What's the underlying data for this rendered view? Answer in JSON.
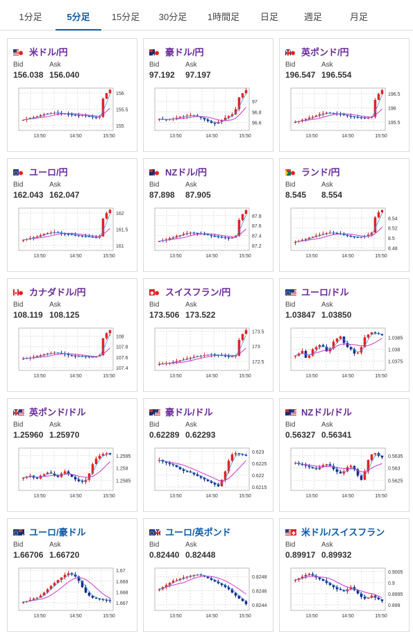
{
  "tabs": [
    {
      "label": "1分足",
      "active": false
    },
    {
      "label": "5分足",
      "active": true
    },
    {
      "label": "15分足",
      "active": false
    },
    {
      "label": "30分足",
      "active": false
    },
    {
      "label": "1時間足",
      "active": false
    },
    {
      "label": "日足",
      "active": false
    },
    {
      "label": "週足",
      "active": false
    },
    {
      "label": "月足",
      "active": false
    }
  ],
  "colors": {
    "up": "#e32222",
    "down": "#1a2a8a",
    "ma_short": "#3399dd",
    "ma_long": "#cc33cc"
  },
  "cards": [
    {
      "title": "米ドル/円",
      "title_color": "purple",
      "flags": [
        "us",
        "jp"
      ],
      "bid_label": "Bid",
      "ask_label": "Ask",
      "bid": "156.038",
      "ask": "156.040",
      "chart_data": {
        "type": "candlestick",
        "xticks": [
          "13:50",
          "14:50",
          "15:50"
        ],
        "yticks": [
          "156",
          "155.5",
          "155"
        ],
        "ylim": [
          154.85,
          156.15
        ],
        "shape": [
          0.25,
          0.27,
          0.3,
          0.31,
          0.33,
          0.36,
          0.38,
          0.4,
          0.41,
          0.42,
          0.41,
          0.4,
          0.39,
          0.38,
          0.37,
          0.36,
          0.35,
          0.36,
          0.34,
          0.33,
          0.31,
          0.3,
          0.32,
          0.75,
          0.88,
          0.96
        ]
      }
    },
    {
      "title": "豪ドル/円",
      "title_color": "purple",
      "flags": [
        "au",
        "jp"
      ],
      "bid_label": "Bid",
      "ask_label": "Ask",
      "bid": "97.192",
      "ask": "97.197",
      "chart_data": {
        "type": "candlestick",
        "xticks": [
          "13:50",
          "14:50",
          "15:50"
        ],
        "yticks": [
          "97",
          "96.8",
          "96.6"
        ],
        "ylim": [
          96.45,
          97.25
        ],
        "shape": [
          0.27,
          0.26,
          0.25,
          0.27,
          0.28,
          0.3,
          0.32,
          0.33,
          0.35,
          0.36,
          0.35,
          0.33,
          0.3,
          0.26,
          0.22,
          0.18,
          0.16,
          0.2,
          0.24,
          0.3,
          0.34,
          0.38,
          0.5,
          0.78,
          0.88,
          0.95
        ]
      }
    },
    {
      "title": "英ポンド/円",
      "title_color": "purple",
      "flags": [
        "gb",
        "jp"
      ],
      "bid_label": "Bid",
      "ask_label": "Ask",
      "bid": "196.547",
      "ask": "196.554",
      "chart_data": {
        "type": "candlestick",
        "xticks": [
          "13:50",
          "14:50",
          "15:50"
        ],
        "yticks": [
          "196.5",
          "196",
          "195.5"
        ],
        "ylim": [
          195.2,
          196.7
        ],
        "shape": [
          0.2,
          0.22,
          0.25,
          0.27,
          0.3,
          0.32,
          0.35,
          0.38,
          0.4,
          0.42,
          0.41,
          0.4,
          0.39,
          0.38,
          0.36,
          0.34,
          0.33,
          0.32,
          0.31,
          0.3,
          0.29,
          0.3,
          0.32,
          0.72,
          0.86,
          0.95
        ]
      }
    },
    {
      "title": "ユーロ/円",
      "title_color": "purple",
      "flags": [
        "eu",
        "jp"
      ],
      "bid_label": "Bid",
      "ask_label": "Ask",
      "bid": "162.043",
      "ask": "162.047",
      "chart_data": {
        "type": "candlestick",
        "xticks": [
          "13:50",
          "14:50",
          "15:50"
        ],
        "yticks": [
          "162",
          "161.5",
          "161"
        ],
        "ylim": [
          160.85,
          162.15
        ],
        "shape": [
          0.25,
          0.27,
          0.29,
          0.31,
          0.33,
          0.36,
          0.39,
          0.41,
          0.42,
          0.43,
          0.42,
          0.4,
          0.39,
          0.38,
          0.37,
          0.36,
          0.35,
          0.34,
          0.33,
          0.32,
          0.31,
          0.3,
          0.33,
          0.75,
          0.88,
          0.96
        ]
      }
    },
    {
      "title": "NZドル/円",
      "title_color": "purple",
      "flags": [
        "nz",
        "jp"
      ],
      "bid_label": "Bid",
      "ask_label": "Ask",
      "bid": "87.898",
      "ask": "87.905",
      "chart_data": {
        "type": "candlestick",
        "xticks": [
          "13:50",
          "14:50",
          "15:50"
        ],
        "yticks": [
          "87.8",
          "87.6",
          "87.4",
          "87.2"
        ],
        "ylim": [
          87.1,
          87.95
        ],
        "shape": [
          0.22,
          0.24,
          0.26,
          0.29,
          0.31,
          0.34,
          0.36,
          0.39,
          0.41,
          0.42,
          0.41,
          0.4,
          0.39,
          0.38,
          0.36,
          0.34,
          0.33,
          0.32,
          0.31,
          0.3,
          0.29,
          0.3,
          0.34,
          0.72,
          0.86,
          0.95
        ]
      }
    },
    {
      "title": "ランド/円",
      "title_color": "purple",
      "flags": [
        "za",
        "jp"
      ],
      "bid_label": "Bid",
      "ask_label": "Ask",
      "bid": "8.545",
      "ask": "8.554",
      "chart_data": {
        "type": "candlestick",
        "xticks": [
          "13:50",
          "14:50",
          "15:50"
        ],
        "yticks": [
          "8.54",
          "8.52",
          "8.5",
          "8.48"
        ],
        "ylim": [
          8.475,
          8.56
        ],
        "shape": [
          0.2,
          0.22,
          0.25,
          0.27,
          0.3,
          0.32,
          0.35,
          0.37,
          0.39,
          0.41,
          0.42,
          0.41,
          0.4,
          0.38,
          0.36,
          0.34,
          0.33,
          0.32,
          0.31,
          0.32,
          0.34,
          0.37,
          0.42,
          0.78,
          0.9,
          0.95
        ]
      }
    },
    {
      "title": "カナダドル/円",
      "title_color": "purple",
      "flags": [
        "ca",
        "jp"
      ],
      "bid_label": "Bid",
      "ask_label": "Ask",
      "bid": "108.119",
      "ask": "108.125",
      "chart_data": {
        "type": "candlestick",
        "xticks": [
          "13:50",
          "14:50",
          "15:50"
        ],
        "yticks": [
          "108",
          "107.8",
          "107.6",
          "107.4"
        ],
        "ylim": [
          107.35,
          108.15
        ],
        "shape": [
          0.28,
          0.29,
          0.3,
          0.32,
          0.34,
          0.36,
          0.38,
          0.4,
          0.41,
          0.42,
          0.41,
          0.4,
          0.38,
          0.36,
          0.35,
          0.34,
          0.34,
          0.33,
          0.33,
          0.32,
          0.32,
          0.33,
          0.36,
          0.76,
          0.88,
          0.95
        ]
      }
    },
    {
      "title": "スイスフラン/円",
      "title_color": "purple",
      "flags": [
        "ch",
        "jp"
      ],
      "bid_label": "Bid",
      "ask_label": "Ask",
      "bid": "173.506",
      "ask": "173.522",
      "chart_data": {
        "type": "candlestick",
        "xticks": [
          "13:50",
          "14:50",
          "15:50"
        ],
        "yticks": [
          "173.5",
          "173",
          "172.5"
        ],
        "ylim": [
          172.2,
          173.6
        ],
        "shape": [
          0.15,
          0.16,
          0.17,
          0.18,
          0.2,
          0.22,
          0.24,
          0.26,
          0.28,
          0.3,
          0.32,
          0.34,
          0.35,
          0.36,
          0.37,
          0.38,
          0.37,
          0.36,
          0.35,
          0.34,
          0.33,
          0.33,
          0.35,
          0.72,
          0.86,
          0.95
        ]
      }
    },
    {
      "title": "ユーロ/ドル",
      "title_color": "purple",
      "flags": [
        "eu",
        "us"
      ],
      "bid_label": "Bid",
      "ask_label": "Ask",
      "bid": "1.03847",
      "ask": "1.03850",
      "chart_data": {
        "type": "candlestick",
        "xticks": [
          "13:50",
          "14:50",
          "15:50"
        ],
        "yticks": [
          "1.0385",
          "1.038",
          "1.0375"
        ],
        "ylim": [
          1.0371,
          1.0389
        ],
        "shape": [
          0.35,
          0.4,
          0.46,
          0.3,
          0.35,
          0.5,
          0.55,
          0.6,
          0.56,
          0.45,
          0.52,
          0.68,
          0.75,
          0.8,
          0.65,
          0.55,
          0.5,
          0.4,
          0.42,
          0.55,
          0.78,
          0.85,
          0.9,
          0.88,
          0.86,
          0.83
        ]
      }
    },
    {
      "title": "英ポンド/ドル",
      "title_color": "purple",
      "flags": [
        "gb",
        "us"
      ],
      "bid_label": "Bid",
      "ask_label": "Ask",
      "bid": "1.25960",
      "ask": "1.25970",
      "chart_data": {
        "type": "candlestick",
        "xticks": [
          "13:50",
          "14:50",
          "15:50"
        ],
        "yticks": [
          "1.2595",
          "1.259",
          "1.2585"
        ],
        "ylim": [
          1.2581,
          1.2598
        ],
        "shape": [
          0.3,
          0.33,
          0.35,
          0.3,
          0.28,
          0.35,
          0.38,
          0.42,
          0.4,
          0.36,
          0.32,
          0.4,
          0.45,
          0.38,
          0.32,
          0.26,
          0.22,
          0.2,
          0.25,
          0.4,
          0.62,
          0.75,
          0.82,
          0.86,
          0.88,
          0.85
        ]
      }
    },
    {
      "title": "豪ドル/ドル",
      "title_color": "purple",
      "flags": [
        "au",
        "us"
      ],
      "bid_label": "Bid",
      "ask_label": "Ask",
      "bid": "0.62289",
      "ask": "0.62293",
      "chart_data": {
        "type": "candlestick",
        "xticks": [
          "13:50",
          "14:50",
          "15:50"
        ],
        "yticks": [
          "0.623",
          "0.6225",
          "0.622",
          "0.6215"
        ],
        "ylim": [
          0.62135,
          0.62315
        ],
        "shape": [
          0.72,
          0.68,
          0.65,
          0.62,
          0.6,
          0.55,
          0.5,
          0.46,
          0.45,
          0.42,
          0.38,
          0.34,
          0.3,
          0.26,
          0.22,
          0.18,
          0.14,
          0.1,
          0.25,
          0.45,
          0.7,
          0.85,
          0.88,
          0.86,
          0.84,
          0.82
        ]
      }
    },
    {
      "title": "NZドル/ドル",
      "title_color": "purple",
      "flags": [
        "nz",
        "us"
      ],
      "bid_label": "Bid",
      "ask_label": "Ask",
      "bid": "0.56327",
      "ask": "0.56341",
      "chart_data": {
        "type": "candlestick",
        "xticks": [
          "13:50",
          "14:50",
          "15:50"
        ],
        "yticks": [
          "0.5635",
          "0.563",
          "0.5625"
        ],
        "ylim": [
          0.5621,
          0.5638
        ],
        "shape": [
          0.65,
          0.62,
          0.6,
          0.58,
          0.55,
          0.52,
          0.5,
          0.55,
          0.6,
          0.62,
          0.58,
          0.5,
          0.44,
          0.4,
          0.45,
          0.55,
          0.58,
          0.5,
          0.35,
          0.25,
          0.45,
          0.72,
          0.85,
          0.88,
          0.82,
          0.78
        ]
      }
    },
    {
      "title": "ユーロ/豪ドル",
      "title_color": "blue",
      "flags": [
        "eu",
        "au"
      ],
      "bid_label": "Bid",
      "ask_label": "Ask",
      "bid": "1.66706",
      "ask": "1.66720",
      "chart_data": {
        "type": "candlestick",
        "xticks": [
          "13:50",
          "14:50",
          "15:50"
        ],
        "yticks": [
          "1.67",
          "1.669",
          "1.668",
          "1.667"
        ],
        "ylim": [
          1.6663,
          1.6702
        ],
        "shape": [
          0.2,
          0.22,
          0.25,
          0.28,
          0.3,
          0.35,
          0.42,
          0.5,
          0.58,
          0.65,
          0.72,
          0.78,
          0.84,
          0.88,
          0.85,
          0.8,
          0.7,
          0.55,
          0.42,
          0.35,
          0.3,
          0.28,
          0.27,
          0.25,
          0.24,
          0.22
        ]
      }
    },
    {
      "title": "ユーロ/英ポンド",
      "title_color": "blue",
      "flags": [
        "eu",
        "gb"
      ],
      "bid_label": "Bid",
      "ask_label": "Ask",
      "bid": "0.82440",
      "ask": "0.82448",
      "chart_data": {
        "type": "candlestick",
        "xticks": [
          "13:50",
          "14:50",
          "15:50"
        ],
        "yticks": [
          "0.8248",
          "0.8246",
          "0.8244"
        ],
        "ylim": [
          0.82432,
          0.82492
        ],
        "shape": [
          0.5,
          0.55,
          0.6,
          0.65,
          0.7,
          0.72,
          0.75,
          0.78,
          0.8,
          0.82,
          0.84,
          0.85,
          0.83,
          0.8,
          0.76,
          0.72,
          0.68,
          0.64,
          0.6,
          0.55,
          0.5,
          0.42,
          0.35,
          0.28,
          0.22,
          0.15
        ]
      }
    },
    {
      "title": "米ドル/スイスフラン",
      "title_color": "blue",
      "flags": [
        "us",
        "ch"
      ],
      "bid_label": "Bid",
      "ask_label": "Ask",
      "bid": "0.89917",
      "ask": "0.89932",
      "chart_data": {
        "type": "candlestick",
        "xticks": [
          "13:50",
          "14:50",
          "15:50"
        ],
        "yticks": [
          "0.9005",
          "0.9",
          "0.8995",
          "0.899"
        ],
        "ylim": [
          0.89875,
          0.90065
        ],
        "shape": [
          0.72,
          0.76,
          0.8,
          0.84,
          0.86,
          0.82,
          0.78,
          0.74,
          0.7,
          0.65,
          0.6,
          0.55,
          0.5,
          0.48,
          0.45,
          0.5,
          0.55,
          0.48,
          0.4,
          0.32,
          0.28,
          0.3,
          0.35,
          0.3,
          0.26,
          0.22
        ]
      }
    }
  ]
}
